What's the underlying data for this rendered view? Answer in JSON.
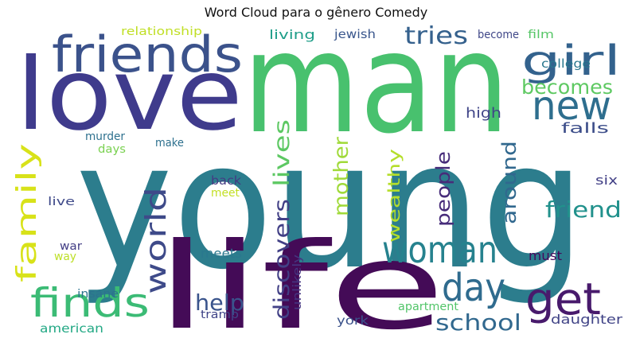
{
  "title": "Word Cloud para o gênero Comedy",
  "words": [
    {
      "text": "young",
      "color": "#2c7d8d"
    },
    {
      "text": "man",
      "color": "#48c16e"
    },
    {
      "text": "love",
      "color": "#3f3b8c"
    },
    {
      "text": "life",
      "color": "#440b57"
    },
    {
      "text": "friends",
      "color": "#3b528b"
    },
    {
      "text": "girl",
      "color": "#33628d"
    },
    {
      "text": "new",
      "color": "#2e6e8e"
    },
    {
      "text": "becomes",
      "color": "#5ec962"
    },
    {
      "text": "tries",
      "color": "#35618d"
    },
    {
      "text": "woman",
      "color": "#26828e"
    },
    {
      "text": "day",
      "color": "#2f6b8e"
    },
    {
      "text": "get",
      "color": "#481a6c"
    },
    {
      "text": "finds",
      "color": "#3bbb75"
    },
    {
      "text": "family",
      "color": "#d8e219"
    },
    {
      "text": "world",
      "color": "#3e4a89"
    },
    {
      "text": "discovers",
      "color": "#424086"
    },
    {
      "text": "lives",
      "color": "#5dc863"
    },
    {
      "text": "mother",
      "color": "#a0da39"
    },
    {
      "text": "wealthy",
      "color": "#b5de2b"
    },
    {
      "text": "people",
      "color": "#472c7a"
    },
    {
      "text": "around",
      "color": "#31688e"
    },
    {
      "text": "friend",
      "color": "#21918c"
    },
    {
      "text": "school",
      "color": "#31688e"
    },
    {
      "text": "help",
      "color": "#3a548c"
    },
    {
      "text": "falls",
      "color": "#3d4e8a"
    },
    {
      "text": "high",
      "color": "#404588"
    },
    {
      "text": "college",
      "color": "#2a778e"
    },
    {
      "text": "living",
      "color": "#1f9e89"
    },
    {
      "text": "jewish",
      "color": "#39568c"
    },
    {
      "text": "become",
      "color": "#3f4788"
    },
    {
      "text": "film",
      "color": "#56c667"
    },
    {
      "text": "relationship",
      "color": "#c0df25"
    },
    {
      "text": "murder",
      "color": "#2d708e"
    },
    {
      "text": "days",
      "color": "#7ad151"
    },
    {
      "text": "make",
      "color": "#2d708e"
    },
    {
      "text": "back",
      "color": "#443a83"
    },
    {
      "text": "meet",
      "color": "#c2df23"
    },
    {
      "text": "six",
      "color": "#424086"
    },
    {
      "text": "live",
      "color": "#3e4989"
    },
    {
      "text": "war",
      "color": "#433e85"
    },
    {
      "text": "way",
      "color": "#bddf26"
    },
    {
      "text": "meets",
      "color": "#2a788e"
    },
    {
      "text": "must",
      "color": "#46085c"
    },
    {
      "text": "unlikely",
      "color": "#453581"
    },
    {
      "text": "insane",
      "color": "#2c738e"
    },
    {
      "text": "tramp",
      "color": "#404588"
    },
    {
      "text": "apartment",
      "color": "#52c569"
    },
    {
      "text": "american",
      "color": "#22a884"
    },
    {
      "text": "york",
      "color": "#3b528b"
    },
    {
      "text": "daughter",
      "color": "#414487"
    }
  ]
}
